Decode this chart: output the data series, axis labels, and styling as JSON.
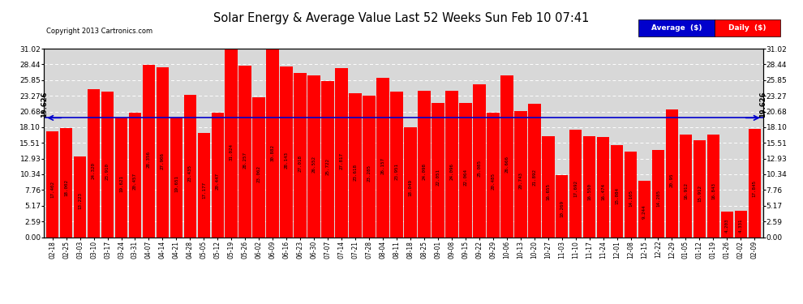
{
  "title": "Solar Energy & Average Value Last 52 Weeks Sun Feb 10 07:41",
  "copyright": "Copyright 2013 Cartronics.com",
  "average_line": 19.626,
  "average_label": "19.626",
  "bar_color": "#ff0000",
  "average_line_color": "#0000cc",
  "background_color": "#ffffff",
  "plot_bg_color": "#d8d8d8",
  "grid_color": "#ffffff",
  "ylim": [
    0.0,
    31.02
  ],
  "yticks": [
    0.0,
    2.59,
    5.17,
    7.76,
    10.34,
    12.93,
    15.51,
    18.1,
    20.68,
    23.27,
    25.85,
    28.44,
    31.02
  ],
  "categories": [
    "02-18",
    "02-25",
    "03-03",
    "03-10",
    "03-17",
    "03-24",
    "03-31",
    "04-07",
    "04-14",
    "04-21",
    "04-28",
    "05-05",
    "05-12",
    "05-19",
    "05-26",
    "06-02",
    "06-09",
    "06-16",
    "06-23",
    "06-30",
    "07-07",
    "07-14",
    "07-21",
    "07-28",
    "08-04",
    "08-11",
    "08-18",
    "08-25",
    "09-01",
    "09-08",
    "09-15",
    "09-22",
    "09-29",
    "10-06",
    "10-13",
    "10-20",
    "10-27",
    "11-03",
    "11-10",
    "11-17",
    "11-24",
    "12-01",
    "12-08",
    "12-15",
    "12-22",
    "12-29",
    "01-05",
    "01-12",
    "01-19",
    "01-26",
    "02-02",
    "02-09"
  ],
  "values": [
    17.402,
    18.002,
    13.223,
    24.32,
    23.91,
    19.621,
    20.457,
    28.356,
    27.906,
    19.651,
    23.435,
    17.177,
    20.447,
    31.024,
    28.257,
    23.062,
    30.882,
    28.143,
    27.018,
    26.552,
    25.722,
    27.817,
    23.618,
    23.285,
    26.157,
    23.951,
    18.049,
    24.098,
    22.051,
    24.096,
    22.064,
    25.085,
    20.485,
    26.666,
    20.743,
    21.892,
    16.655,
    10.269,
    17.692,
    16.55,
    16.474,
    15.084,
    14.105,
    9.244,
    14.285,
    20.95,
    16.912,
    15.912,
    16.843,
    4.203,
    4.331,
    17.845
  ],
  "value_labels": [
    "17.402",
    "18.002",
    "13.223",
    "24.320",
    "23.910",
    "19.621",
    "20.457",
    "28.356",
    "27.906",
    "19.651",
    "23.435",
    "17.177",
    "20.447",
    "31.024",
    "28.257",
    "23.062",
    "30.882",
    "28.143",
    "27.018",
    "26.552",
    "25.722",
    "27.817",
    "23.618",
    "23.285",
    "26.157",
    "23.951",
    "18.049",
    "24.098",
    "22.051",
    "24.096",
    "22.064",
    "25.085",
    "20.485",
    "26.666",
    "20.743",
    "21.892",
    "16.655",
    "10.269",
    "17.692",
    "16.550",
    "16.474",
    "15.084",
    "14.105",
    "9.244",
    "14.285",
    "20.95",
    "16.912",
    "15.912",
    "16.843",
    "4.203",
    "4.331",
    "17.845"
  ],
  "legend_avg_color": "#0000cc",
  "legend_daily_color": "#ff0000",
  "legend_avg_label": "Average  ($)",
  "legend_daily_label": "Daily  ($)"
}
